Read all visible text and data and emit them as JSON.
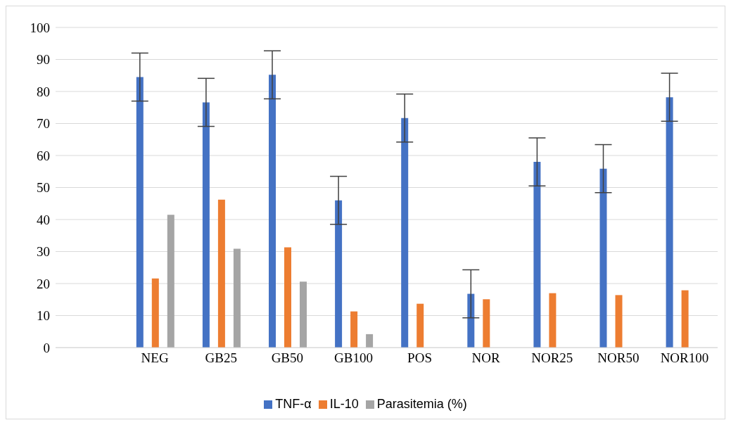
{
  "chart_data": {
    "type": "bar",
    "categories": [
      null,
      "NEG",
      "GB25",
      "GB50",
      "GB100",
      "POS",
      "NOR",
      "NOR25",
      "NOR50",
      "NOR100"
    ],
    "series": [
      {
        "name": "TNF-α",
        "color": "#4472c4",
        "values": [
          null,
          84.5,
          76.6,
          85.2,
          46,
          71.7,
          16.8,
          58,
          55.9,
          78.2
        ],
        "errors": [
          null,
          7.5,
          7.5,
          7.5,
          7.5,
          7.5,
          7.5,
          7.5,
          7.5,
          7.5
        ]
      },
      {
        "name": "IL-10",
        "color": "#ed7d31",
        "values": [
          null,
          21.6,
          46.2,
          31.3,
          11.3,
          13.7,
          15.1,
          17,
          16.4,
          17.9
        ]
      },
      {
        "name": "Parasitemia (%)",
        "color": "#a5a5a5",
        "values": [
          null,
          41.5,
          30.9,
          20.6,
          4.2,
          null,
          null,
          null,
          null,
          null
        ]
      }
    ],
    "ylim": [
      0,
      100
    ],
    "yticks": [
      0,
      10,
      20,
      30,
      40,
      50,
      60,
      70,
      80,
      90,
      100
    ],
    "grid": "y",
    "legend": "bottom"
  }
}
